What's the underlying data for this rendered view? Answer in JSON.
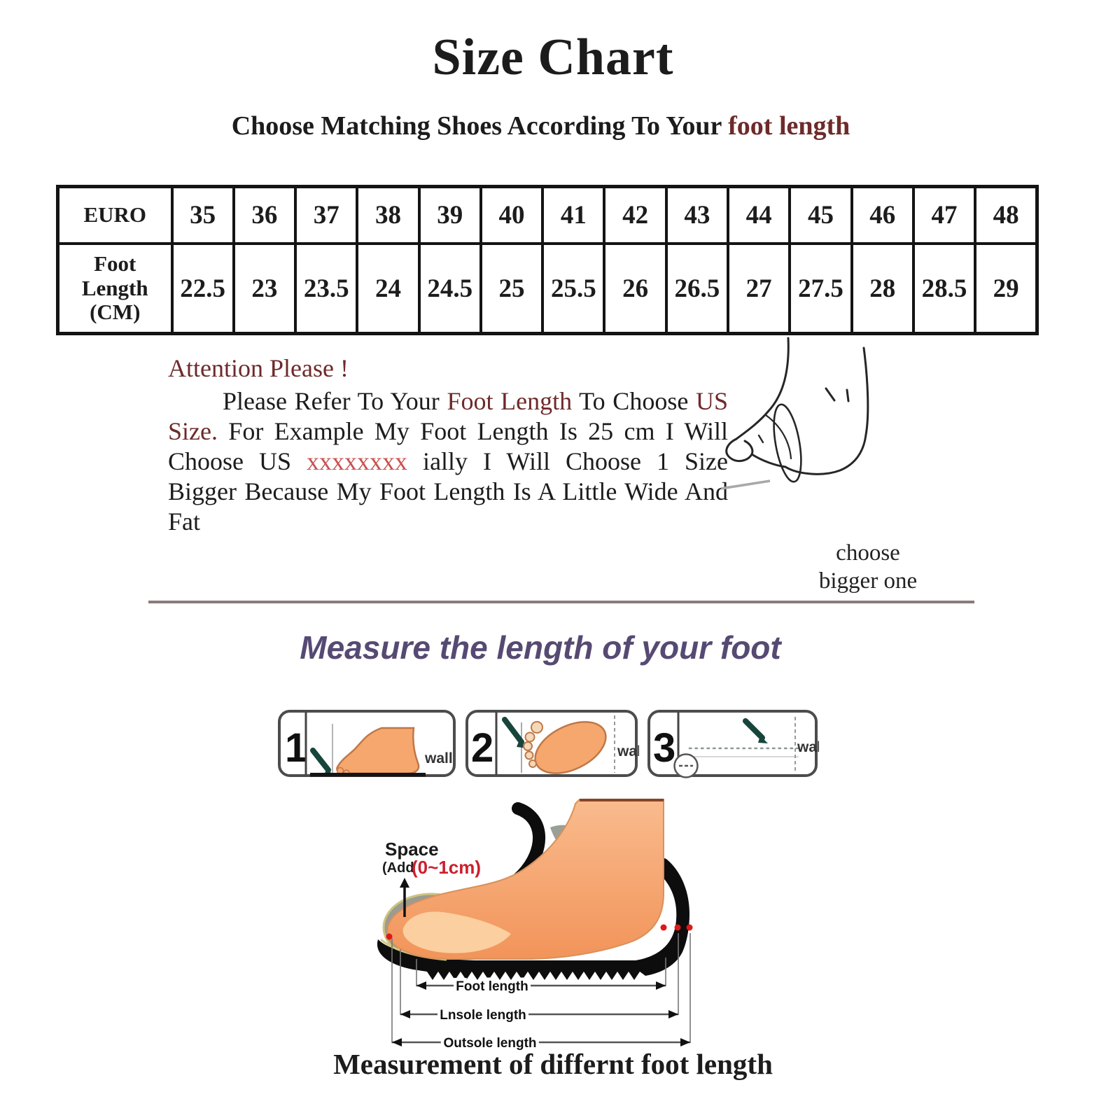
{
  "title": "Size Chart",
  "subtitle": {
    "prefix": "Choose Matching Shoes According To Your ",
    "highlight": "foot length"
  },
  "size_table": {
    "rows": [
      {
        "header": "EURO",
        "cells": [
          "35",
          "36",
          "37",
          "38",
          "39",
          "40",
          "41",
          "42",
          "43",
          "44",
          "45",
          "46",
          "47",
          "48"
        ]
      },
      {
        "header": "Foot\nLength\n(CM)",
        "cells": [
          "22.5",
          "23",
          "23.5",
          "24",
          "24.5",
          "25",
          "25.5",
          "26",
          "26.5",
          "27",
          "27.5",
          "28",
          "28.5",
          "29"
        ]
      }
    ]
  },
  "attention": {
    "heading": "Attention Please !",
    "segments": [
      {
        "text": "Please Refer To Your ",
        "style": "black"
      },
      {
        "text": "Foot Length",
        "style": "maroon"
      },
      {
        "text": " To Choose ",
        "style": "black"
      },
      {
        "text": "US Size.",
        "style": "maroon"
      },
      {
        "text": " For Example My Foot Length Is 25 cm I Will Choose US ",
        "style": "black"
      },
      {
        "text": "xxxxxxxx",
        "style": "red"
      },
      {
        "text": " ially I Will Choose 1 Size Bigger Because My Foot Length Is A Little Wide And Fat",
        "style": "black"
      }
    ]
  },
  "sketch_note": {
    "line1": "choose",
    "line2": "bigger one"
  },
  "measure_heading": "Measure the length of your foot",
  "panels": [
    {
      "number": "1",
      "wall": "wall"
    },
    {
      "number": "2",
      "wall": "wall"
    },
    {
      "number": "3",
      "wall": "wall"
    }
  ],
  "diagram": {
    "space_title": "Space",
    "space_add": "(Add",
    "space_range": "(0~1cm)",
    "arrow_labels": [
      "Foot length",
      "Lnsole length",
      "Outsole length"
    ]
  },
  "caption": "Measurement of differnt foot length",
  "colors": {
    "maroon_text": "#6e2a2a",
    "red_x": "#c9504f",
    "purple_heading": "#564a73",
    "divider": "#8b7b7b",
    "foot_orange": "#f6a76d",
    "space_red": "#cc1f2d"
  }
}
